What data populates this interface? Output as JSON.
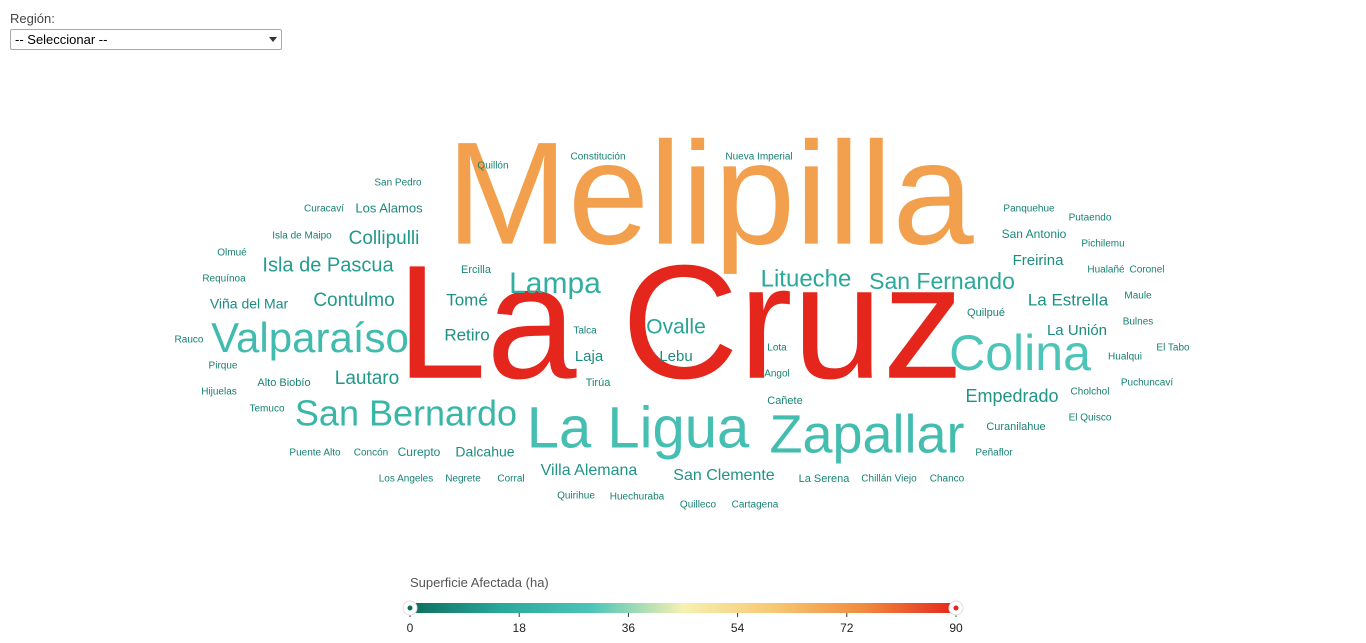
{
  "filter": {
    "label": "Región:",
    "selected": "-- Seleccionar --"
  },
  "chart_data": {
    "type": "wordcloud",
    "color_scale": {
      "title": "Superficie Afectada (ha)",
      "domain": [
        0,
        90
      ],
      "ticks": [
        "0",
        "18",
        "36",
        "54",
        "72",
        "90"
      ],
      "colors": [
        "#0d6d5e",
        "#2aa89b",
        "#4cc5b8",
        "#f6f1b2",
        "#f7c872",
        "#f08a3c",
        "#e4261c"
      ]
    },
    "words": [
      {
        "text": "Melipilla",
        "value": 70
      },
      {
        "text": "La Cruz",
        "value": 90
      },
      {
        "text": "Colina",
        "value": 30
      },
      {
        "text": "Valparaíso",
        "value": 25
      },
      {
        "text": "La Ligua",
        "value": 27
      },
      {
        "text": "Zapallar",
        "value": 26
      },
      {
        "text": "San Bernardo",
        "value": 22
      },
      {
        "text": "Lampa",
        "value": 18
      },
      {
        "text": "Litueche",
        "value": 15
      },
      {
        "text": "San Fernando",
        "value": 15
      },
      {
        "text": "Ovalle",
        "value": 14
      },
      {
        "text": "Isla de Pascua",
        "value": 12
      },
      {
        "text": "Collipulli",
        "value": 11
      },
      {
        "text": "Contulmo",
        "value": 11
      },
      {
        "text": "Lautaro",
        "value": 11
      },
      {
        "text": "Empedrado",
        "value": 10
      },
      {
        "text": "Villa Alemana",
        "value": 10
      },
      {
        "text": "San Clemente",
        "value": 10
      },
      {
        "text": "La Estrella",
        "value": 9
      },
      {
        "text": "Tomé",
        "value": 9
      },
      {
        "text": "Retiro",
        "value": 9
      },
      {
        "text": "La Unión",
        "value": 8
      },
      {
        "text": "Freirina",
        "value": 8
      },
      {
        "text": "Laja",
        "value": 8
      },
      {
        "text": "Lebu",
        "value": 8
      },
      {
        "text": "Dalcahue",
        "value": 8
      },
      {
        "text": "Viña del Mar",
        "value": 8
      },
      {
        "text": "Los Alamos",
        "value": 7
      },
      {
        "text": "San Antonio",
        "value": 7
      },
      {
        "text": "Curepto",
        "value": 7
      },
      {
        "text": "Ercilla",
        "value": 6
      },
      {
        "text": "Tirúa",
        "value": 6
      },
      {
        "text": "Cañete",
        "value": 6
      },
      {
        "text": "Curanilahue",
        "value": 6
      },
      {
        "text": "Alto Biobío",
        "value": 6
      },
      {
        "text": "Quilpué",
        "value": 6
      },
      {
        "text": "La Serena",
        "value": 6
      },
      {
        "text": "Hualqui",
        "value": 5
      },
      {
        "text": "Chillán Viejo",
        "value": 5
      },
      {
        "text": "Hualañé",
        "value": 5
      },
      {
        "text": "Panquehue",
        "value": 5
      },
      {
        "text": "Quillón",
        "value": 5
      },
      {
        "text": "Constitución",
        "value": 5
      },
      {
        "text": "Nueva Imperial",
        "value": 5
      },
      {
        "text": "Isla de Maipo",
        "value": 5
      },
      {
        "text": "Concón",
        "value": 5
      },
      {
        "text": "Negrete",
        "value": 5
      },
      {
        "text": "Corral",
        "value": 5
      },
      {
        "text": "Huechuraba",
        "value": 5
      },
      {
        "text": "Quilleco",
        "value": 5
      },
      {
        "text": "Cartagena",
        "value": 5
      },
      {
        "text": "Quirihue",
        "value": 5
      },
      {
        "text": "Los Angeles",
        "value": 5
      },
      {
        "text": "Puente Alto",
        "value": 5
      },
      {
        "text": "Temuco",
        "value": 5
      },
      {
        "text": "Hijuelas",
        "value": 5
      },
      {
        "text": "Pirque",
        "value": 5
      },
      {
        "text": "Rauco",
        "value": 5
      },
      {
        "text": "Requínoa",
        "value": 5
      },
      {
        "text": "Olmué",
        "value": 5
      },
      {
        "text": "Curacaví",
        "value": 5
      },
      {
        "text": "San Pedro",
        "value": 5
      },
      {
        "text": "Putaendo",
        "value": 5
      },
      {
        "text": "Pichilemu",
        "value": 5
      },
      {
        "text": "Coronel",
        "value": 5
      },
      {
        "text": "Maule",
        "value": 5
      },
      {
        "text": "Bulnes",
        "value": 5
      },
      {
        "text": "El Tabo",
        "value": 5
      },
      {
        "text": "Puchuncaví",
        "value": 5
      },
      {
        "text": "Cholchol",
        "value": 5
      },
      {
        "text": "El Quisco",
        "value": 5
      },
      {
        "text": "Peñaflor",
        "value": 5
      },
      {
        "text": "Chanco",
        "value": 5
      },
      {
        "text": "Lota",
        "value": 5
      },
      {
        "text": "Angol",
        "value": 5
      },
      {
        "text": "Talca",
        "value": 5
      }
    ]
  }
}
